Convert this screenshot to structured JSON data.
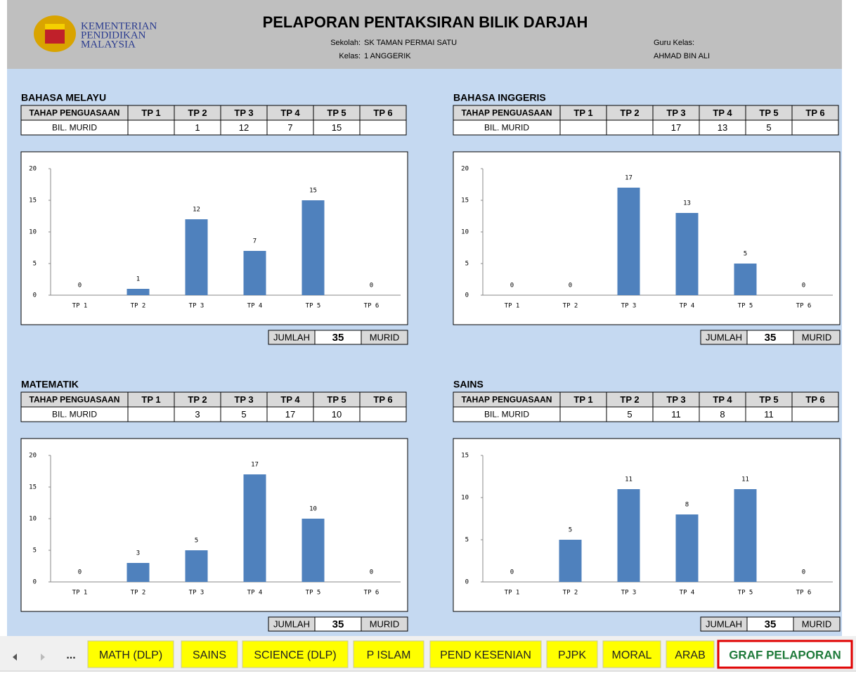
{
  "header": {
    "logo_text": [
      "KEMENTERIAN",
      "PENDIDIKAN",
      "MALAYSIA"
    ],
    "title": "PELAPORAN PENTAKSIRAN BILIK DARJAH",
    "school_label": "Sekolah:",
    "school": "SK TAMAN PERMAI SATU",
    "class_label": "Kelas:",
    "class": "1 ANGGERIK",
    "teacher_label": "Guru Kelas:",
    "teacher": "AHMAD BIN ALI"
  },
  "panels": [
    {
      "subject": "BAHASA MELAYU",
      "table": {
        "header": [
          "TAHAP PENGUASAAN",
          "TP 1",
          "TP 2",
          "TP 3",
          "TP 4",
          "TP 5",
          "TP 6"
        ],
        "row_label": "BIL. MURID",
        "cells": [
          null,
          1,
          12,
          7,
          15,
          null
        ]
      },
      "chart": {
        "type": "bar",
        "categories": [
          "TP 1",
          "TP 2",
          "TP 3",
          "TP 4",
          "TP 5",
          "TP 6"
        ],
        "values": [
          0,
          1,
          12,
          7,
          15,
          0
        ],
        "ylim": [
          0,
          20
        ],
        "yticks": [
          0,
          5,
          10,
          15,
          20
        ],
        "color": "#4f81bd"
      },
      "total_label": "JUMLAH",
      "total": 35,
      "unit": "MURID"
    },
    {
      "subject": "BAHASA INGGERIS",
      "table": {
        "header": [
          "TAHAP PENGUASAAN",
          "TP 1",
          "TP 2",
          "TP 3",
          "TP 4",
          "TP 5",
          "TP 6"
        ],
        "row_label": "BIL. MURID",
        "cells": [
          null,
          null,
          17,
          13,
          5,
          null
        ]
      },
      "chart": {
        "type": "bar",
        "categories": [
          "TP 1",
          "TP 2",
          "TP 3",
          "TP 4",
          "TP 5",
          "TP 6"
        ],
        "values": [
          0,
          0,
          17,
          13,
          5,
          0
        ],
        "ylim": [
          0,
          20
        ],
        "yticks": [
          0,
          5,
          10,
          15,
          20
        ],
        "color": "#4f81bd"
      },
      "total_label": "JUMLAH",
      "total": 35,
      "unit": "MURID"
    },
    {
      "subject": "MATEMATIK",
      "table": {
        "header": [
          "TAHAP PENGUASAAN",
          "TP 1",
          "TP 2",
          "TP 3",
          "TP 4",
          "TP 5",
          "TP 6"
        ],
        "row_label": "BIL. MURID",
        "cells": [
          null,
          3,
          5,
          17,
          10,
          null
        ]
      },
      "chart": {
        "type": "bar",
        "categories": [
          "TP 1",
          "TP 2",
          "TP 3",
          "TP 4",
          "TP 5",
          "TP 6"
        ],
        "values": [
          0,
          3,
          5,
          17,
          10,
          0
        ],
        "ylim": [
          0,
          20
        ],
        "yticks": [
          0,
          5,
          10,
          15,
          20
        ],
        "color": "#4f81bd"
      },
      "total_label": "JUMLAH",
      "total": 35,
      "unit": "MURID"
    },
    {
      "subject": "SAINS",
      "table": {
        "header": [
          "TAHAP PENGUASAAN",
          "TP 1",
          "TP 2",
          "TP 3",
          "TP 4",
          "TP 5",
          "TP 6"
        ],
        "row_label": "BIL. MURID",
        "cells": [
          null,
          5,
          11,
          8,
          11,
          null
        ]
      },
      "chart": {
        "type": "bar",
        "categories": [
          "TP 1",
          "TP 2",
          "TP 3",
          "TP 4",
          "TP 5",
          "TP 6"
        ],
        "values": [
          0,
          5,
          11,
          8,
          11,
          0
        ],
        "ylim": [
          0,
          15
        ],
        "yticks": [
          0,
          5,
          10,
          15
        ],
        "color": "#4f81bd"
      },
      "total_label": "JUMLAH",
      "total": 35,
      "unit": "MURID"
    }
  ],
  "tabs": [
    "...",
    "MATH (DLP)",
    "SAINS",
    "SCIENCE (DLP)",
    "P ISLAM",
    "PEND KESENIAN",
    "PJPK",
    "MORAL",
    "ARAB",
    "GRAF PELAPORAN"
  ],
  "active_tab": "GRAF PELAPORAN"
}
